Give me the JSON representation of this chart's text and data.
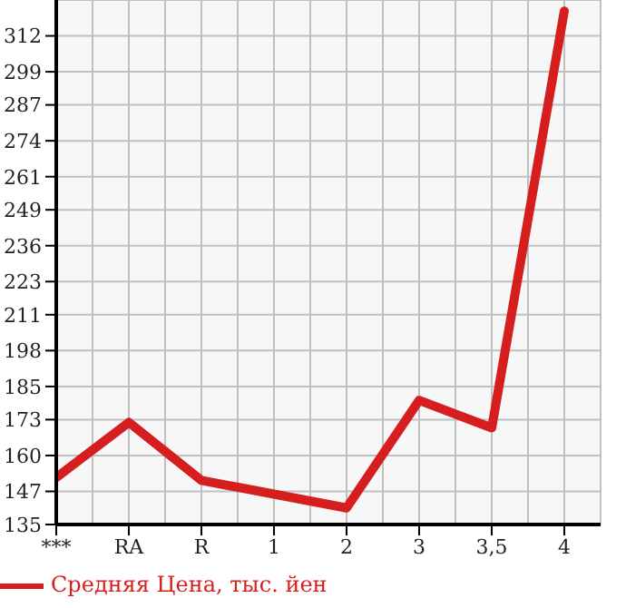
{
  "chart_data": {
    "type": "line",
    "categories": [
      "***",
      "RA",
      "R",
      "1",
      "2",
      "3",
      "3,5",
      "4"
    ],
    "series": [
      {
        "name": "Средняя Цена, тыс. йен",
        "color": "#d71e1e",
        "values": [
          152,
          172,
          151,
          146,
          141,
          180,
          170,
          321
        ]
      }
    ],
    "ylim": [
      135,
      325
    ],
    "yticks": [
      135,
      147,
      160,
      173,
      185,
      198,
      211,
      223,
      236,
      249,
      261,
      274,
      287,
      299,
      312
    ],
    "grid": true,
    "legend": "bottom left",
    "marker": "none"
  }
}
